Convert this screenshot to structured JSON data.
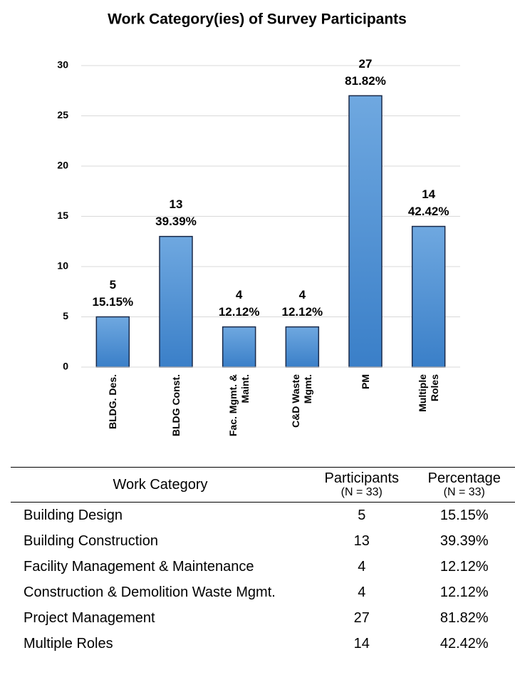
{
  "chart_data": {
    "type": "bar",
    "title": "Work Category(ies) of Survey Participants",
    "categories": [
      "BLDG. Des.",
      "BLDG Const.",
      "Fac. Mgmt. &\nMaint.",
      "C&D Waste\nMgmt.",
      "PM",
      "Multiple\nRoles"
    ],
    "values": [
      5,
      13,
      4,
      4,
      27,
      14
    ],
    "percentages": [
      15.15,
      39.39,
      12.12,
      12.12,
      81.82,
      42.42
    ],
    "percentage_labels": [
      "15.15%",
      "39.39%",
      "12.12%",
      "12.12%",
      "81.82%",
      "42.42%"
    ],
    "color": "#4a8fd6",
    "ylim": [
      0,
      30
    ],
    "yticks": [
      0,
      5,
      10,
      15,
      20,
      25,
      30
    ],
    "grid": true
  },
  "table": {
    "header": [
      "Work Category",
      "Participants",
      "Percentage"
    ],
    "header_sub": [
      "(N = 33)",
      "(N = 33)"
    ],
    "rows": [
      [
        "Building Design",
        "5",
        "15.15%"
      ],
      [
        "Building Construction",
        "13",
        "39.39%"
      ],
      [
        "Facility Management & Maintenance",
        "4",
        "12.12%"
      ],
      [
        "Construction & Demolition Waste Mgmt.",
        "4",
        "12.12%"
      ],
      [
        "Project Management",
        "27",
        "81.82%"
      ],
      [
        "Multiple Roles",
        "14",
        "42.42%"
      ]
    ]
  }
}
